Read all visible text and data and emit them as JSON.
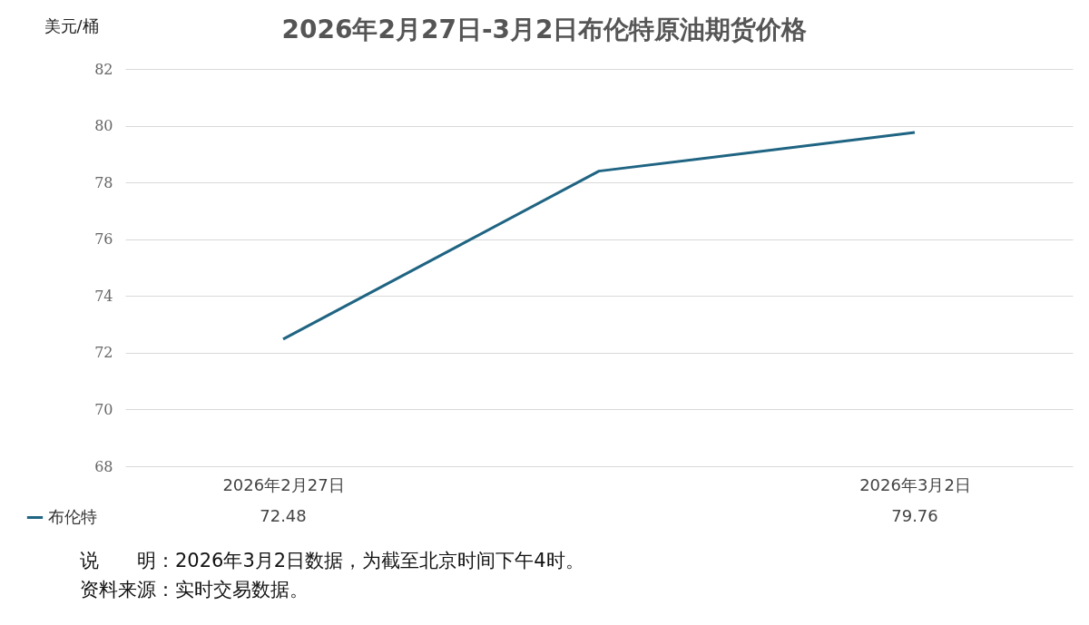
{
  "chart_data": {
    "type": "line",
    "title": "2026年2月27日-3月2日布伦特原油期货价格",
    "ylabel": "美元/桶",
    "categories": [
      "2026年2月27日",
      null,
      "2026年3月2日"
    ],
    "series": [
      {
        "name": "布伦特",
        "color": "#1f6482",
        "values": [
          72.48,
          78.4,
          79.76
        ],
        "value_labels": [
          "72.48",
          null,
          "79.76"
        ]
      }
    ],
    "ylim": [
      68,
      82
    ],
    "yticks": [
      68,
      70,
      72,
      74,
      76,
      78,
      80,
      82
    ],
    "grid": "y",
    "legend": "bottom left",
    "marker": "none",
    "annotations": [
      "说　　明：2026年3月2日数据，为截至北京时间下午4时。",
      "资料来源：实时交易数据。"
    ]
  }
}
